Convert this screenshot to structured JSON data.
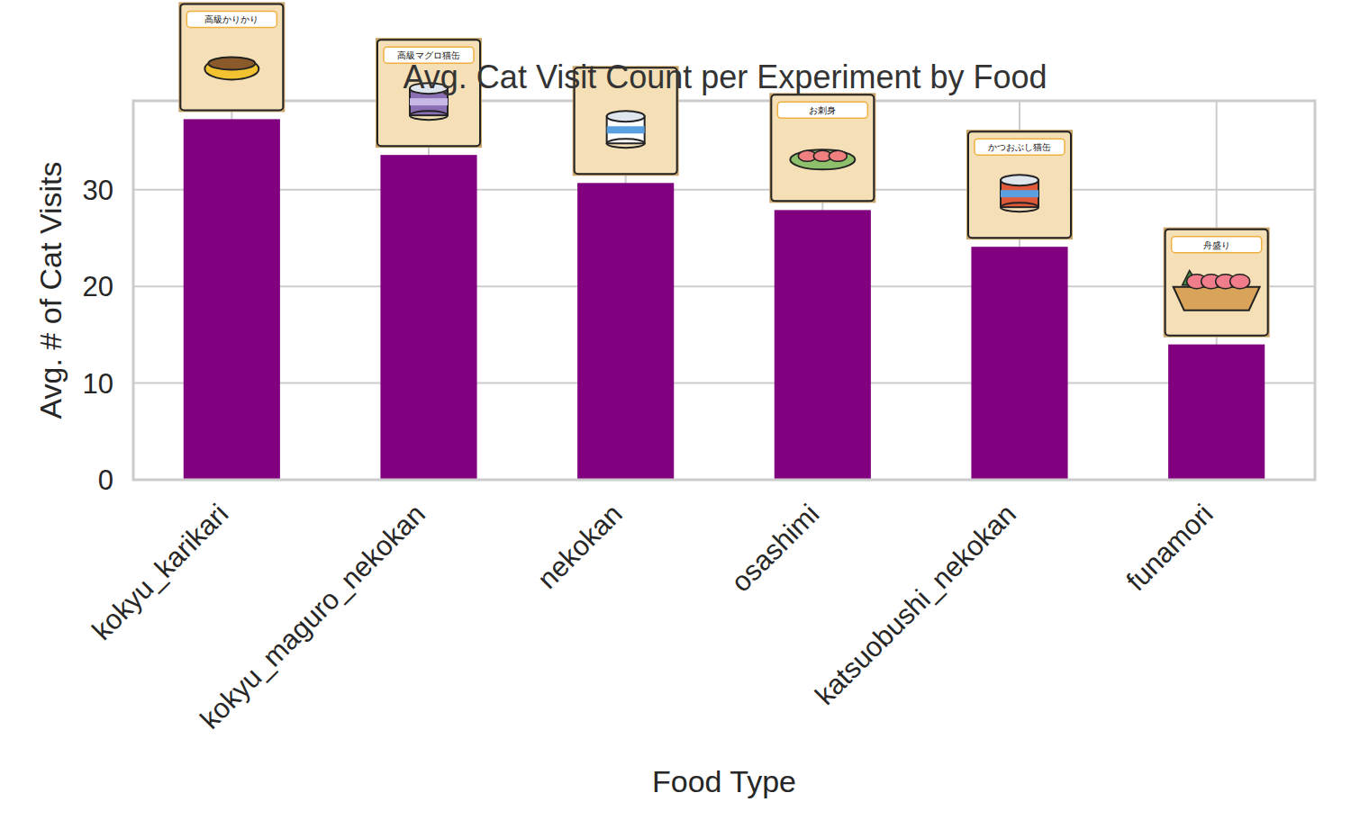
{
  "chart_data": {
    "type": "bar",
    "title": "Avg. Cat Visit Count per Experiment by Food",
    "x_label": "Food Type",
    "y_label": "Avg. # of Cat Visits",
    "categories": [
      "kokyu_karikari",
      "kokyu_maguro_nekokan",
      "nekokan",
      "osashimi",
      "katsuobushi_nekokan",
      "funamori"
    ],
    "values": [
      37.3,
      33.6,
      30.7,
      27.9,
      24.1,
      14.0
    ],
    "annotations": [
      "高級かりかり",
      "高級マグロ猫缶",
      null,
      "お刺身",
      "かつおぶし猫缶",
      "舟盛り"
    ],
    "color": "#800080",
    "ylim": [
      0,
      39.2
    ],
    "yticks": [
      0,
      10,
      20,
      30
    ],
    "grid": true
  }
}
